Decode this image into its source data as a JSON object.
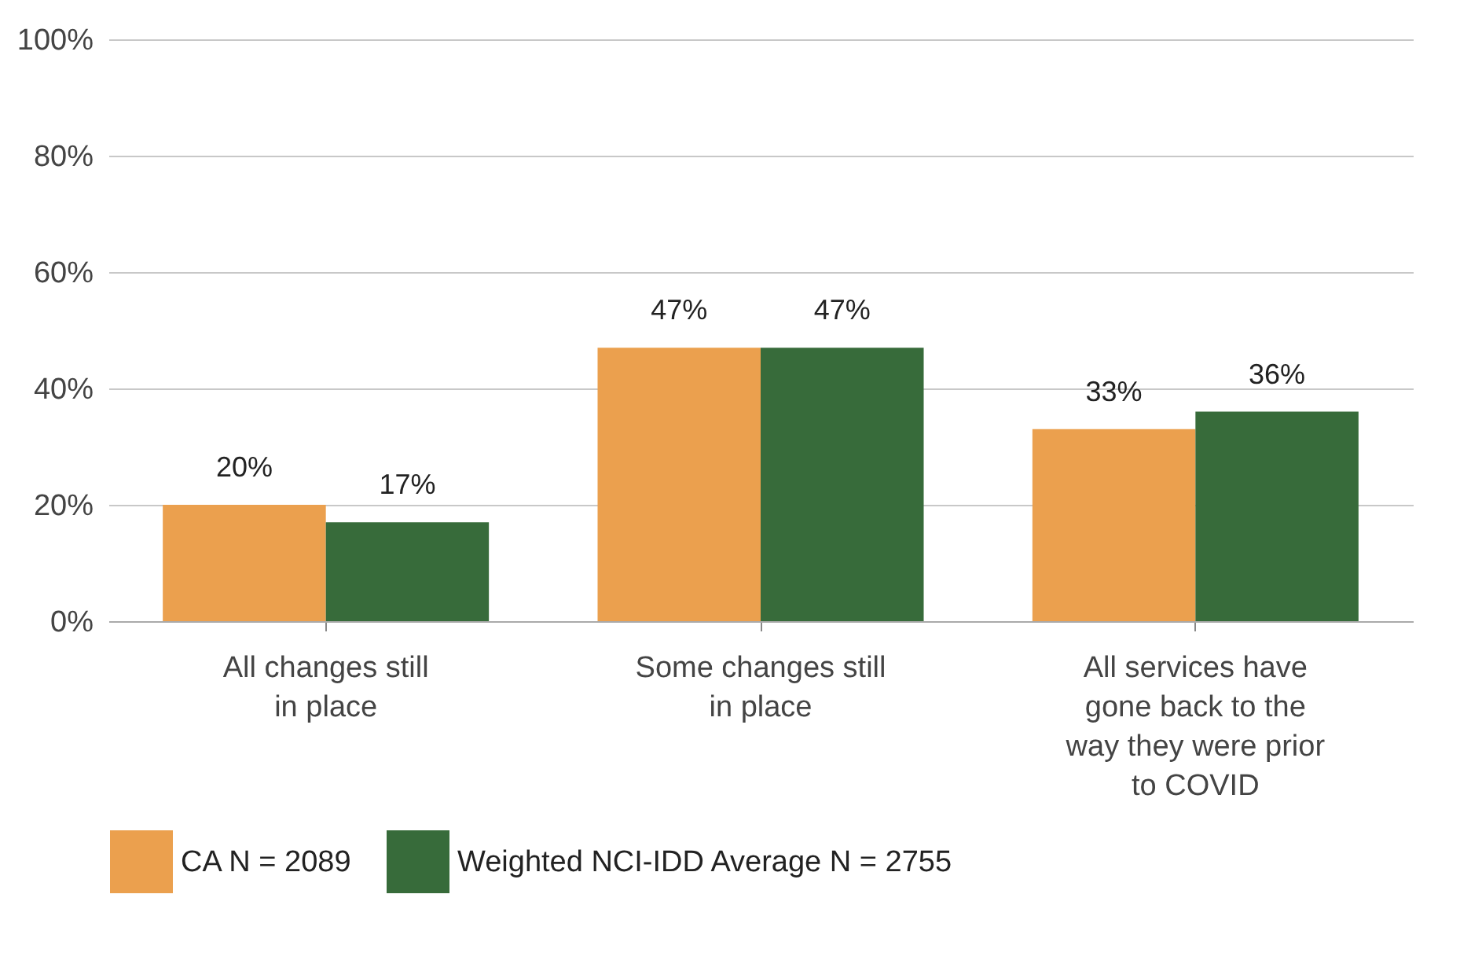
{
  "chart_data": {
    "type": "bar",
    "categories": [
      "All changes still in place",
      "Some changes still in place",
      "All services have gone back to the way they were prior to COVID"
    ],
    "series": [
      {
        "name": "CA N = 2089",
        "color": "#eba04e",
        "values": [
          20,
          47,
          33
        ],
        "value_labels": [
          "20%",
          "47%",
          "33%"
        ]
      },
      {
        "name": "Weighted NCI-IDD Average N = 2755",
        "color": "#376b3a",
        "values": [
          17,
          47,
          36
        ],
        "value_labels": [
          "17%",
          "47%",
          "36%"
        ]
      }
    ],
    "ylim": [
      0,
      100
    ],
    "yticks": [
      {
        "value": 0,
        "label": "0%"
      },
      {
        "value": 20,
        "label": "20%"
      },
      {
        "value": 40,
        "label": "40%"
      },
      {
        "value": 60,
        "label": "60%"
      },
      {
        "value": 80,
        "label": "80%"
      },
      {
        "value": 100,
        "label": "100%"
      }
    ],
    "grid": "y",
    "legend": "bottom"
  }
}
